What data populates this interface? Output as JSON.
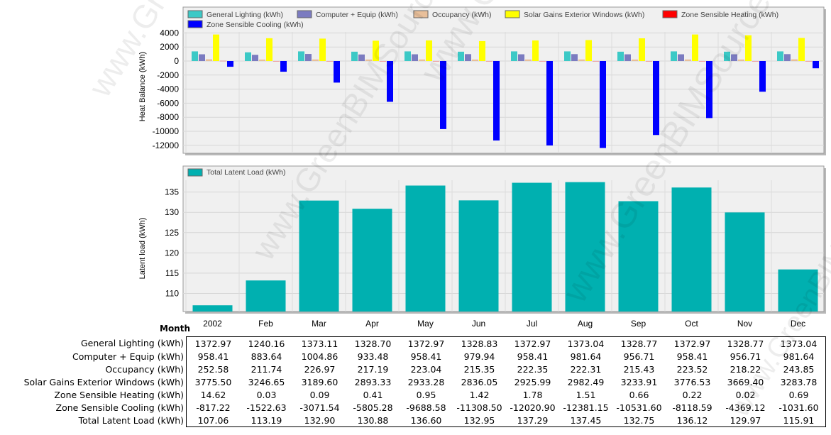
{
  "table": {
    "month_header": "Month",
    "months": [
      "2002",
      "Feb",
      "Mar",
      "Apr",
      "May",
      "Jun",
      "Jul",
      "Aug",
      "Sep",
      "Oct",
      "Nov",
      "Dec"
    ],
    "rows": [
      {
        "label": "General Lighting (kWh)",
        "values": [
          "1372.97",
          "1240.16",
          "1373.11",
          "1328.70",
          "1372.97",
          "1328.83",
          "1372.97",
          "1373.04",
          "1328.77",
          "1372.97",
          "1328.77",
          "1373.04"
        ]
      },
      {
        "label": "Computer + Equip (kWh)",
        "values": [
          "958.41",
          "883.64",
          "1004.86",
          "933.48",
          "958.41",
          "979.94",
          "958.41",
          "981.64",
          "956.71",
          "958.41",
          "956.71",
          "981.64"
        ]
      },
      {
        "label": "Occupancy (kWh)",
        "values": [
          "252.58",
          "211.74",
          "226.97",
          "217.19",
          "223.04",
          "215.35",
          "222.35",
          "222.31",
          "215.43",
          "223.52",
          "218.22",
          "243.85"
        ]
      },
      {
        "label": "Solar Gains Exterior Windows (kWh)",
        "values": [
          "3775.50",
          "3246.65",
          "3189.60",
          "2893.33",
          "2933.28",
          "2836.05",
          "2925.99",
          "2982.49",
          "3233.91",
          "3776.53",
          "3669.40",
          "3283.78"
        ]
      },
      {
        "label": "Zone Sensible Heating (kWh)",
        "values": [
          "14.62",
          "0.03",
          "0.09",
          "0.41",
          "0.95",
          "1.42",
          "1.78",
          "1.51",
          "0.66",
          "0.22",
          "0.02",
          "0.69"
        ]
      },
      {
        "label": "Zone Sensible Cooling (kWh)",
        "values": [
          "-817.22",
          "-1522.63",
          "-3071.54",
          "-5805.28",
          "-9688.58",
          "-11308.50",
          "-12020.90",
          "-12381.15",
          "-10531.60",
          "-8118.59",
          "-4369.12",
          "-1031.60"
        ]
      },
      {
        "label": "Total Latent Load (kWh)",
        "values": [
          "107.06",
          "113.19",
          "132.90",
          "130.88",
          "136.60",
          "132.95",
          "137.29",
          "137.45",
          "132.75",
          "136.12",
          "129.97",
          "115.91"
        ]
      }
    ]
  },
  "watermark": "www.GreenBIMSource.com",
  "chart_data": [
    {
      "type": "bar",
      "ylabel": "Heat Balance (kWh)",
      "xlabel": "",
      "ylim": [
        -13000,
        5000
      ],
      "yticks": [
        4000,
        2000,
        0,
        -2000,
        -4000,
        -6000,
        -8000,
        -10000,
        -12000
      ],
      "grid": true,
      "legend": "top-left",
      "categories": [
        "2002",
        "Feb",
        "Mar",
        "Apr",
        "May",
        "Jun",
        "Jul",
        "Aug",
        "Sep",
        "Oct",
        "Nov",
        "Dec"
      ],
      "series": [
        {
          "name": "General Lighting (kWh)",
          "color": "#3cc9c6",
          "values": [
            1372.97,
            1240.16,
            1373.11,
            1328.7,
            1372.97,
            1328.83,
            1372.97,
            1373.04,
            1328.77,
            1372.97,
            1328.77,
            1373.04
          ]
        },
        {
          "name": "Computer + Equip (kWh)",
          "color": "#7b7bc0",
          "values": [
            958.41,
            883.64,
            1004.86,
            933.48,
            958.41,
            979.94,
            958.41,
            981.64,
            956.71,
            958.41,
            956.71,
            981.64
          ]
        },
        {
          "name": "Occupancy (kWh)",
          "color": "#e8bf9a",
          "values": [
            252.58,
            211.74,
            226.97,
            217.19,
            223.04,
            215.35,
            222.35,
            222.31,
            215.43,
            223.52,
            218.22,
            243.85
          ]
        },
        {
          "name": "Solar Gains Exterior Windows (kWh)",
          "color": "#ffff00",
          "values": [
            3775.5,
            3246.65,
            3189.6,
            2893.33,
            2933.28,
            2836.05,
            2925.99,
            2982.49,
            3233.91,
            3776.53,
            3669.4,
            3283.78
          ]
        },
        {
          "name": "Zone Sensible Heating (kWh)",
          "color": "#ff0000",
          "values": [
            14.62,
            0.03,
            0.09,
            0.41,
            0.95,
            1.42,
            1.78,
            1.51,
            0.66,
            0.22,
            0.02,
            0.69
          ]
        },
        {
          "name": "Zone Sensible Cooling (kWh)",
          "color": "#0000ff",
          "values": [
            -817.22,
            -1522.63,
            -3071.54,
            -5805.28,
            -9688.58,
            -11308.5,
            -12020.9,
            -12381.15,
            -10531.6,
            -8118.59,
            -4369.12,
            -1031.6
          ]
        }
      ]
    },
    {
      "type": "bar",
      "ylabel": "Latent load (kWh)",
      "xlabel": "",
      "ylim": [
        105,
        140
      ],
      "yticks": [
        135,
        130,
        125,
        120,
        115,
        110
      ],
      "grid": true,
      "legend": "top-left",
      "categories": [
        "2002",
        "Feb",
        "Mar",
        "Apr",
        "May",
        "Jun",
        "Jul",
        "Aug",
        "Sep",
        "Oct",
        "Nov",
        "Dec"
      ],
      "series": [
        {
          "name": "Total Latent Load (kWh)",
          "color": "#00b0b0",
          "values": [
            107.06,
            113.19,
            132.9,
            130.88,
            136.6,
            132.95,
            137.29,
            137.45,
            132.75,
            136.12,
            129.97,
            115.91
          ]
        }
      ]
    }
  ]
}
